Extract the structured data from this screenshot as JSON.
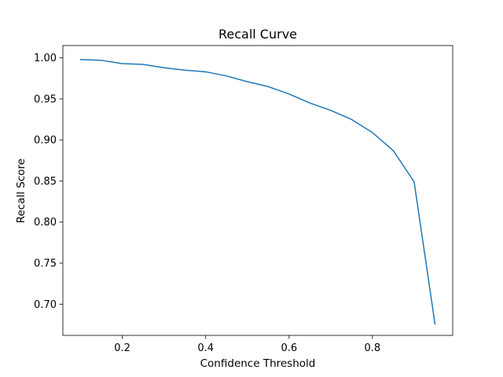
{
  "chart_data": {
    "type": "line",
    "title": "Recall Curve",
    "xlabel": "Confidence Threshold",
    "ylabel": "Recall Score",
    "xlim": [
      0.0575,
      0.9925
    ],
    "ylim": [
      0.662,
      1.015
    ],
    "xticks": [
      0.2,
      0.4,
      0.6,
      0.8
    ],
    "xtick_labels": [
      "0.2",
      "0.4",
      "0.6",
      "0.8"
    ],
    "yticks": [
      0.7,
      0.75,
      0.8,
      0.85,
      0.9,
      0.95,
      1.0
    ],
    "ytick_labels": [
      "0.70",
      "0.75",
      "0.80",
      "0.85",
      "0.90",
      "0.95",
      "1.00"
    ],
    "grid": false,
    "series": [
      {
        "color": "#1f77b4",
        "x": [
          0.1,
          0.15,
          0.2,
          0.25,
          0.3,
          0.35,
          0.4,
          0.45,
          0.5,
          0.55,
          0.6,
          0.65,
          0.7,
          0.75,
          0.8,
          0.85,
          0.9,
          0.95
        ],
        "y": [
          0.998,
          0.997,
          0.993,
          0.992,
          0.988,
          0.985,
          0.983,
          0.978,
          0.971,
          0.965,
          0.956,
          0.945,
          0.936,
          0.925,
          0.909,
          0.887,
          0.849,
          0.676
        ]
      }
    ]
  }
}
